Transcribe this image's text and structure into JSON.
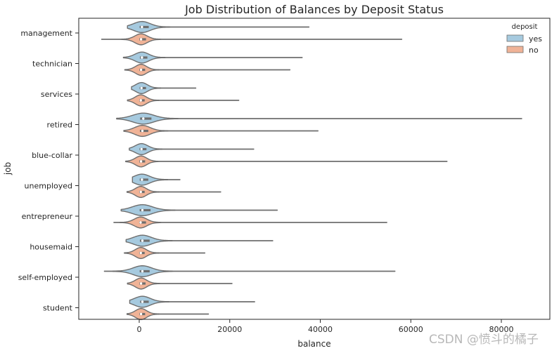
{
  "chart_data": {
    "type": "violin",
    "title": "Job Distribution of Balances by Deposit Status",
    "xlabel": "balance",
    "ylabel": "job",
    "xlim": [
      -13000,
      90000
    ],
    "xticks": [
      0,
      20000,
      40000,
      60000,
      80000
    ],
    "xtick_labels": [
      "0",
      "20000",
      "40000",
      "60000",
      "80000"
    ],
    "orientation": "horizontal",
    "grid": false,
    "legend_position": "top-right",
    "legend_title": "deposit",
    "categories": [
      "management",
      "technician",
      "services",
      "retired",
      "blue-collar",
      "unemployed",
      "entrepreneur",
      "housemaid",
      "self-employed",
      "student"
    ],
    "series": [
      {
        "name": "yes",
        "color": "#a6cadf",
        "min": [
          -2600,
          -3500,
          -1700,
          -5000,
          -2200,
          -1500,
          -4000,
          -2900,
          -7700,
          -2100
        ],
        "q1": [
          100,
          150,
          100,
          200,
          80,
          120,
          100,
          150,
          100,
          200
        ],
        "median": [
          600,
          600,
          500,
          900,
          500,
          600,
          700,
          700,
          700,
          700
        ],
        "q3": [
          2100,
          1800,
          1500,
          2700,
          1600,
          2000,
          2500,
          2300,
          2300,
          2100
        ],
        "max": [
          37500,
          36000,
          12500,
          84500,
          25300,
          9000,
          30500,
          29500,
          56500,
          25500
        ]
      },
      {
        "name": "no",
        "color": "#f0b397",
        "min": [
          -8300,
          -3200,
          -2600,
          -3400,
          -3000,
          -2700,
          -5600,
          -3300,
          -2600,
          -2700
        ],
        "q1": [
          30,
          40,
          30,
          150,
          30,
          30,
          0,
          30,
          50,
          50
        ],
        "median": [
          400,
          400,
          350,
          700,
          400,
          350,
          300,
          350,
          400,
          400
        ],
        "q3": [
          1500,
          1300,
          1200,
          2000,
          1300,
          1200,
          1500,
          1200,
          1400,
          1300
        ],
        "max": [
          58000,
          33300,
          22000,
          39500,
          68000,
          18000,
          54700,
          14500,
          20500,
          15300
        ]
      }
    ]
  },
  "watermark": "CSDN @愤斗的橘子"
}
